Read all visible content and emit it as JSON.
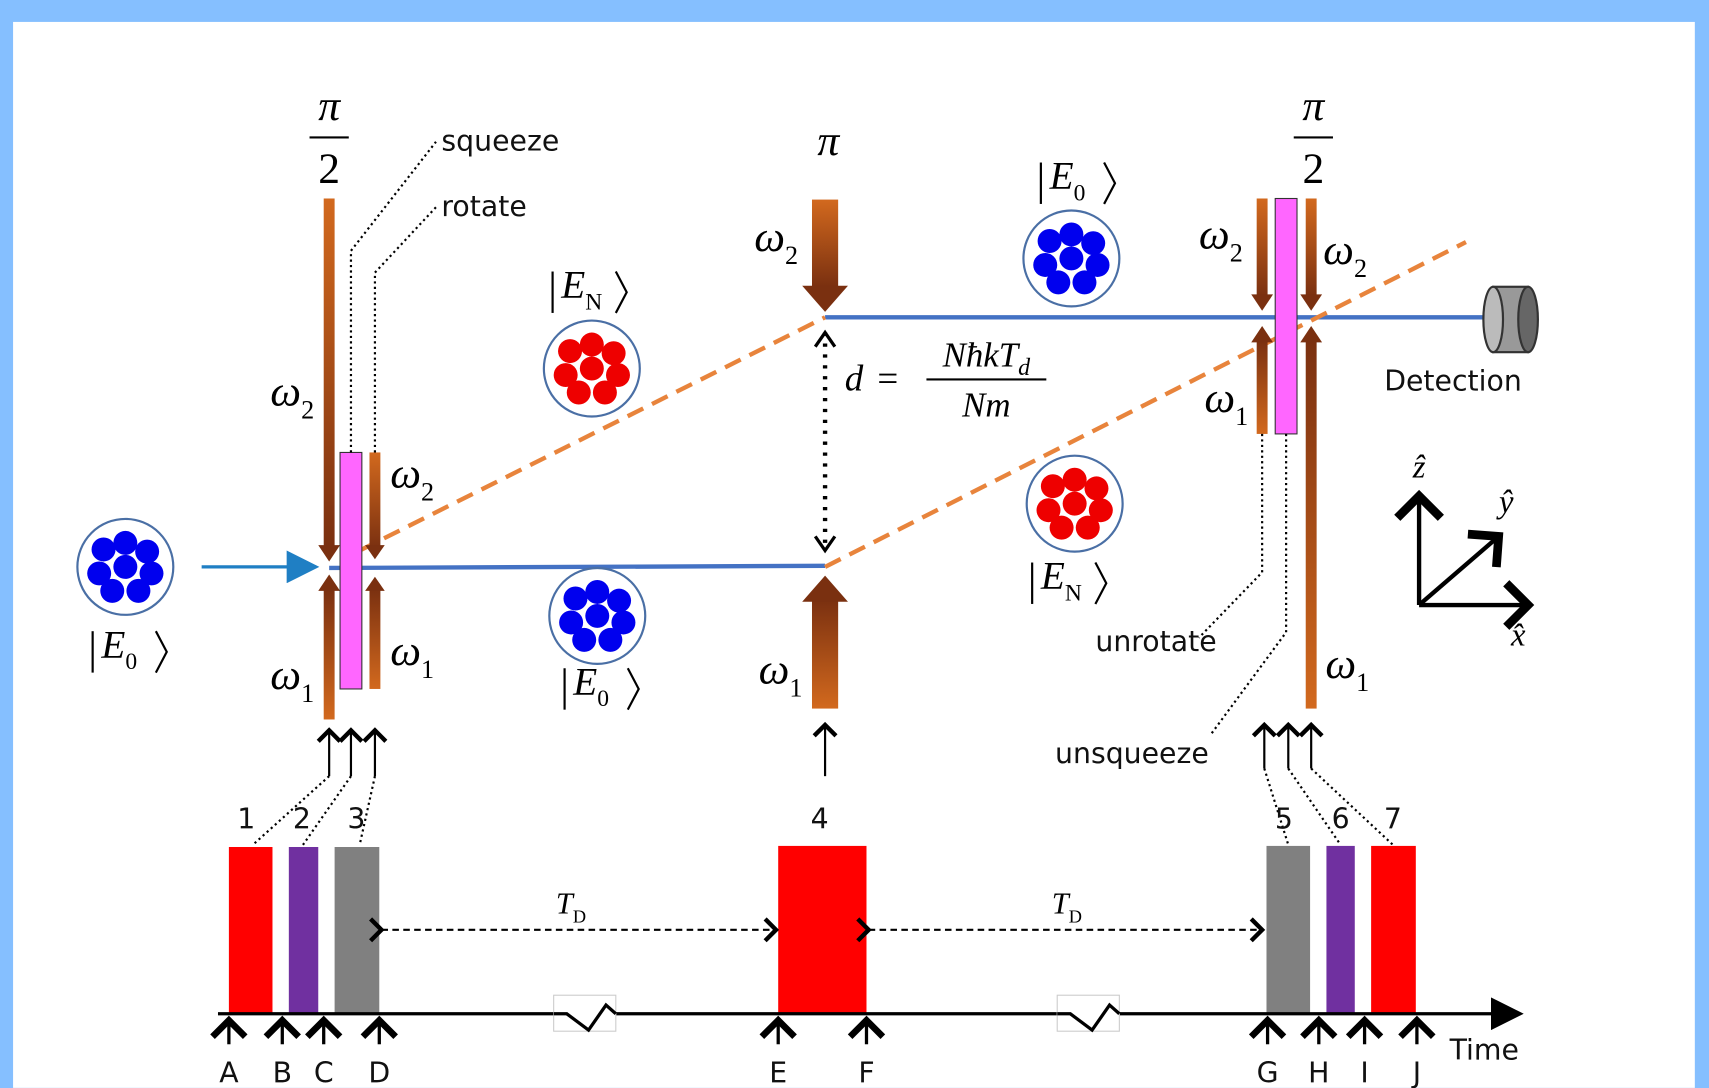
{
  "annotations": {
    "squeeze": "squeeze",
    "rotate": "rotate",
    "unrotate": "unrotate",
    "unsqueeze": "unsqueeze",
    "detection": "Detection",
    "time": "Time"
  },
  "pulse_areas": [
    {
      "numerator": "π",
      "denominator": "2"
    },
    {
      "numerator": "π"
    },
    {
      "numerator": "π",
      "denominator": "2"
    }
  ],
  "beams": [
    {
      "symbol": "ω",
      "subscript": "2"
    },
    {
      "symbol": "ω",
      "subscript": "2"
    },
    {
      "symbol": "ω",
      "subscript": "1"
    },
    {
      "symbol": "ω",
      "subscript": "1"
    },
    {
      "symbol": "ω",
      "subscript": "2"
    },
    {
      "symbol": "ω",
      "subscript": "1"
    },
    {
      "symbol": "ω",
      "subscript": "2"
    },
    {
      "symbol": "ω",
      "subscript": "2"
    },
    {
      "symbol": "ω",
      "subscript": "1"
    },
    {
      "symbol": "ω",
      "subscript": "1"
    }
  ],
  "states": [
    {
      "symbol": "E",
      "subscript": "0"
    },
    {
      "symbol": "E",
      "subscript": "N"
    },
    {
      "symbol": "E",
      "subscript": "0"
    },
    {
      "symbol": "E",
      "subscript": "0"
    },
    {
      "symbol": "E",
      "subscript": "N"
    }
  ],
  "separation": {
    "lhs": "d",
    "equals": "=",
    "numerator": "NħkT",
    "numerator_subscript": "d",
    "denominator": "Nm"
  },
  "delay_labels": [
    {
      "symbol": "T",
      "subscript": "D"
    },
    {
      "symbol": "T",
      "subscript": "D"
    }
  ],
  "pulse_numbers": [
    "1",
    "2",
    "3",
    "4",
    "5",
    "6",
    "7"
  ],
  "time_markers": [
    "A",
    "B",
    "C",
    "D",
    "E",
    "F",
    "G",
    "H",
    "I",
    "J"
  ],
  "axes": {
    "z": "ẑ",
    "y": "ŷ",
    "x": "x̂"
  }
}
